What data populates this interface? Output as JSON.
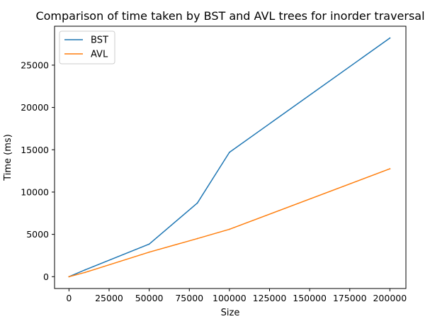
{
  "chart_data": {
    "type": "line",
    "title": "Comparison of time taken by BST and AVL trees for inorder traversal",
    "xlabel": "Size",
    "ylabel": "Time (ms)",
    "xlim": [
      -9000,
      210000
    ],
    "ylim": [
      -1400,
      29600
    ],
    "x_ticks": [
      0,
      25000,
      50000,
      75000,
      100000,
      125000,
      150000,
      175000,
      200000
    ],
    "x_tick_labels": [
      "0",
      "25000",
      "50000",
      "75000",
      "100000",
      "125000",
      "150000",
      "175000",
      "200000"
    ],
    "y_ticks": [
      0,
      5000,
      10000,
      15000,
      20000,
      25000
    ],
    "y_tick_labels": [
      "0",
      "5000",
      "10000",
      "15000",
      "20000",
      "25000"
    ],
    "grid": false,
    "legend_position": "top-left",
    "x": [
      0,
      10000,
      50000,
      80000,
      100000,
      200000
    ],
    "series": [
      {
        "name": "BST",
        "color": "#1f77b4",
        "values": [
          0,
          800,
          3850,
          8700,
          14700,
          28200
        ]
      },
      {
        "name": "AVL",
        "color": "#ff7f0e",
        "values": [
          0,
          500,
          2900,
          4500,
          5600,
          12750
        ]
      }
    ]
  }
}
